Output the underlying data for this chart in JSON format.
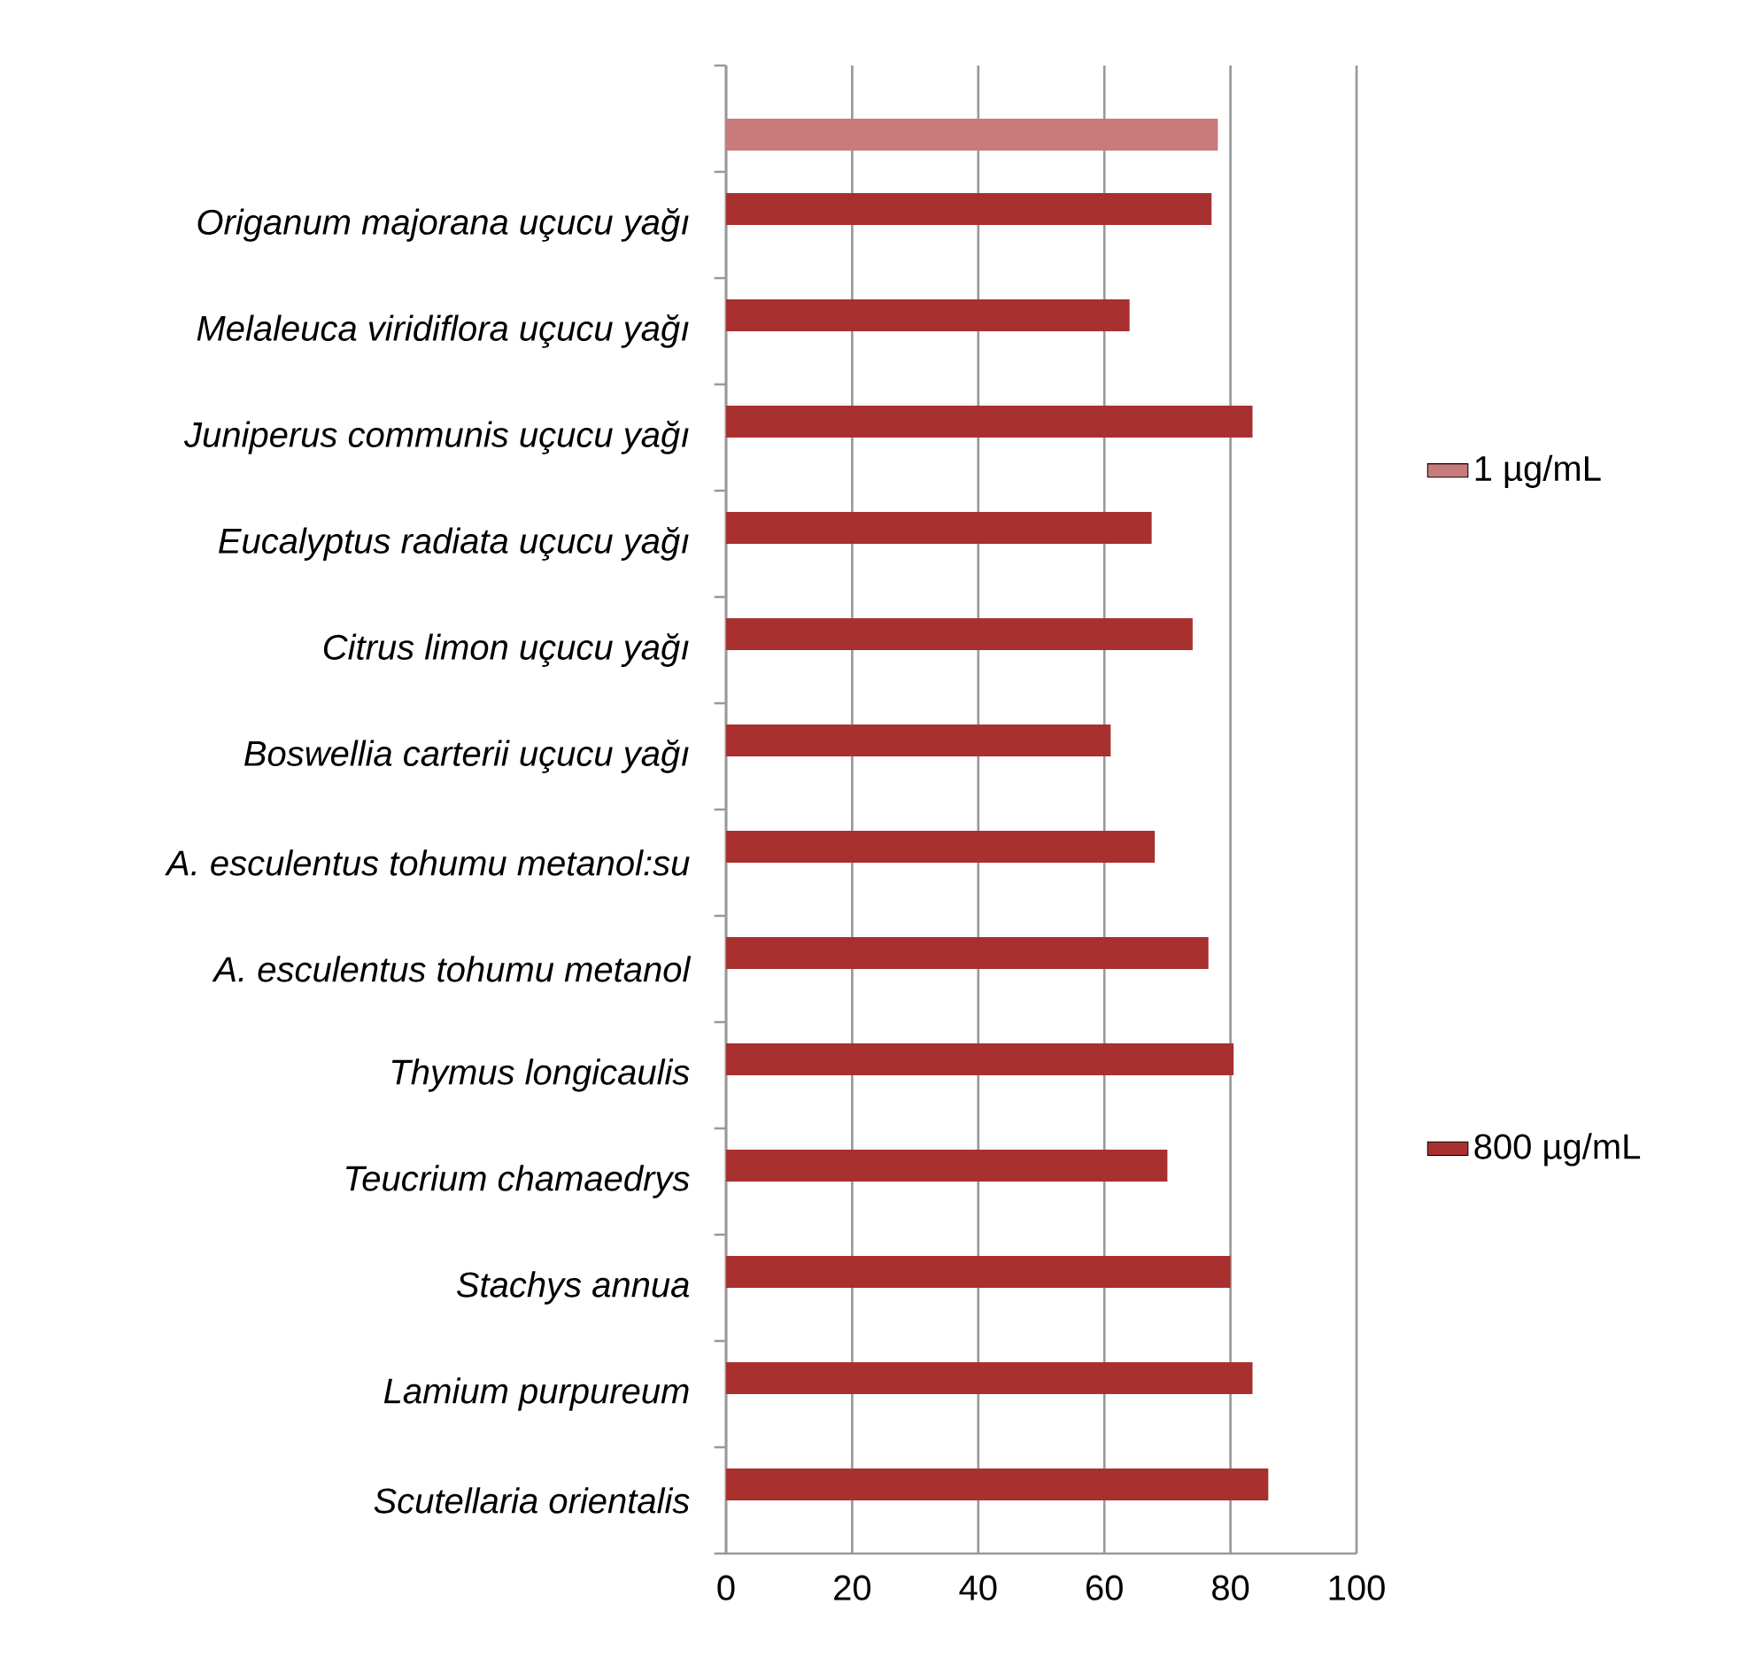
{
  "chart_data": {
    "type": "bar",
    "orientation": "horizontal",
    "categories": [
      null,
      "Origanum majorana uçucu yağı",
      "Melaleuca viridiflora uçucu yağı",
      "Juniperus communis uçucu yağı",
      "Eucalyptus radiata uçucu yağı",
      "Citrus limon uçucu yağı",
      "Boswellia carterii uçucu yağı",
      "A. esculentus tohumu metanol:su",
      "A. esculentus tohumu metanol",
      "Thymus longicaulis",
      "Teucrium chamaedrys",
      "Stachys annua",
      "Lamium purpureum",
      "Scutellaria orientalis"
    ],
    "series": [
      {
        "name": "1 µg/mL",
        "color": "#c97a7a",
        "values": [
          78,
          null,
          null,
          null,
          null,
          null,
          null,
          null,
          null,
          null,
          null,
          null,
          null,
          null
        ]
      },
      {
        "name": "800 µg/mL",
        "color": "#a8302e",
        "values": [
          null,
          77,
          64,
          83.5,
          67.5,
          74,
          61,
          68,
          76.5,
          80.5,
          70,
          80,
          83.5,
          86
        ]
      }
    ],
    "xlim": [
      0,
      100
    ],
    "xticks": [
      0,
      20,
      40,
      60,
      80,
      100
    ],
    "grid": "x",
    "legend": "right"
  }
}
